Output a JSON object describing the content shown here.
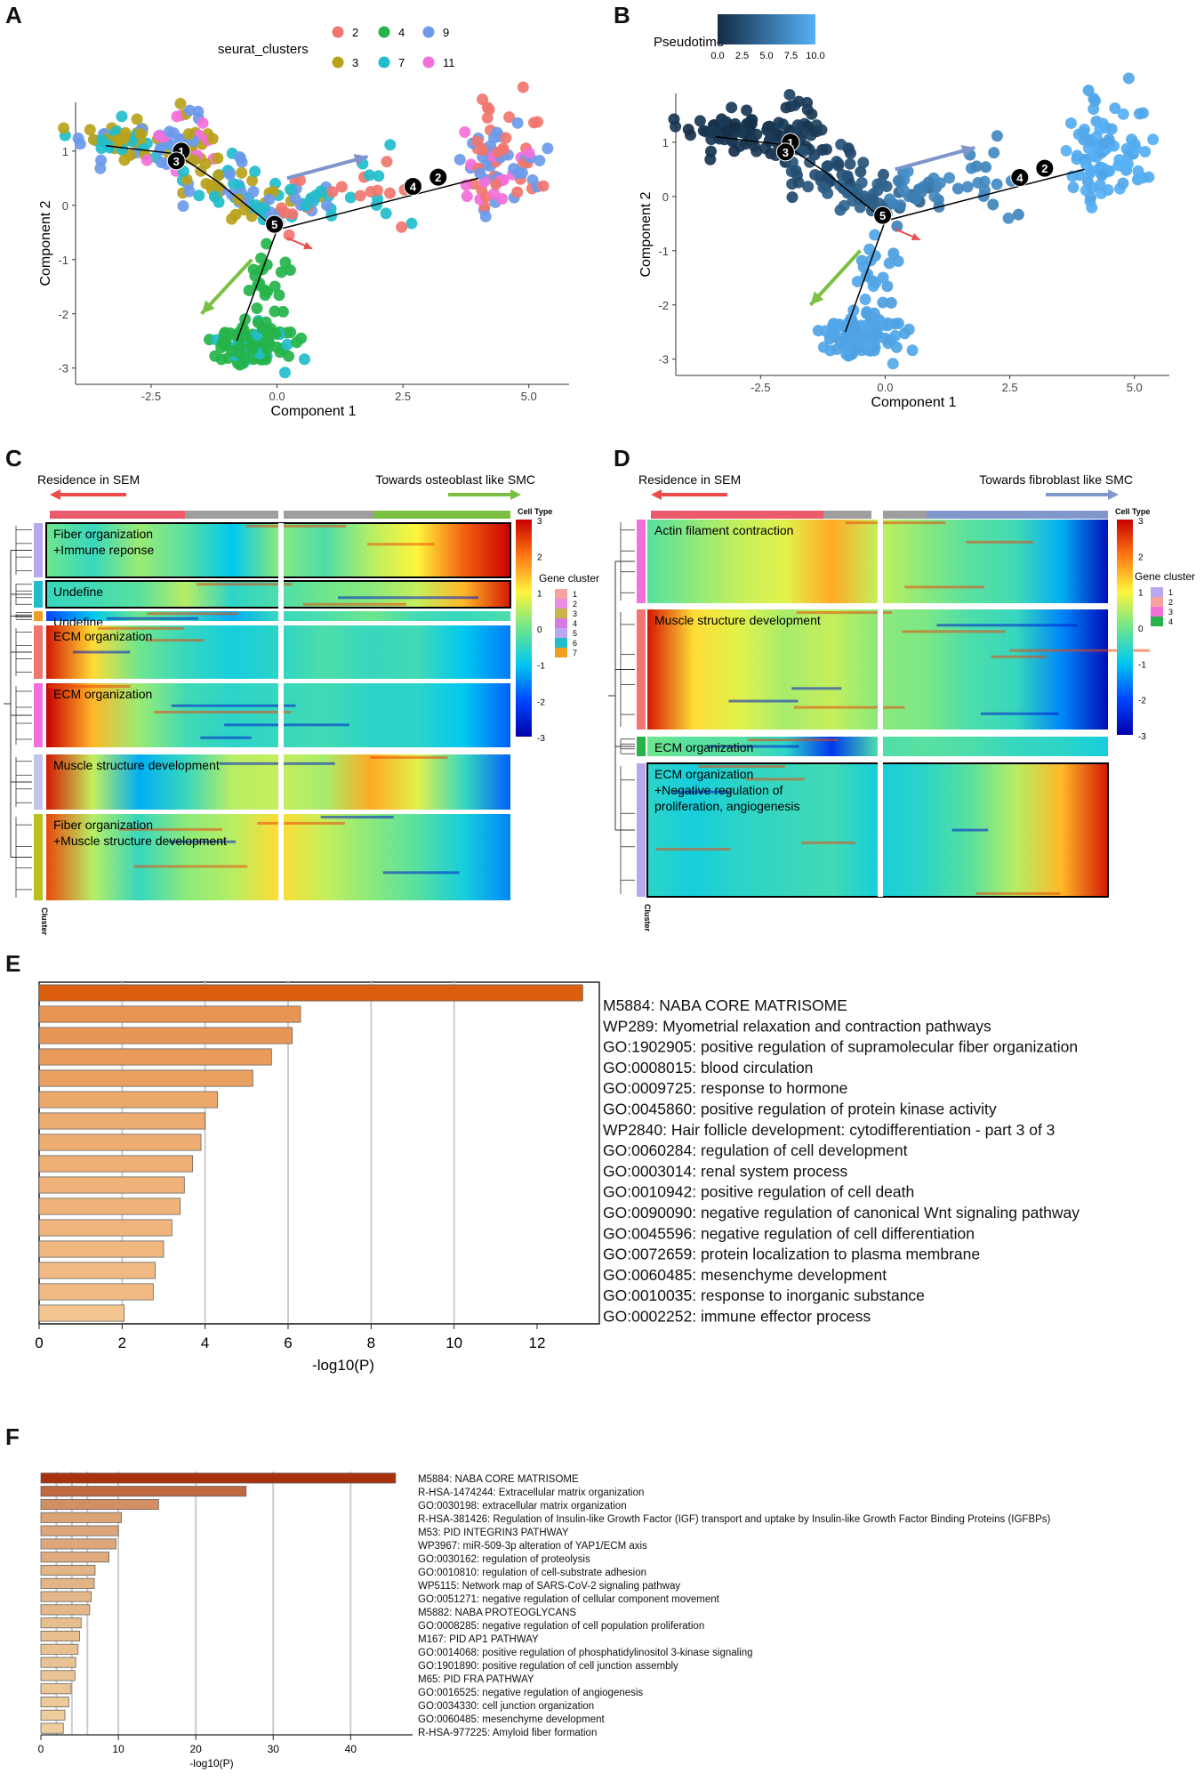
{
  "panels": {
    "a": "A",
    "b": "B",
    "c": "C",
    "d": "D",
    "e": "E",
    "f": "F"
  },
  "colors": {
    "cl2": "#F0766E",
    "cl3": "#B9A21A",
    "cl4": "#25B34A",
    "cl7": "#22BDCB",
    "cl9": "#6D9AEA",
    "cl11": "#F36FD9",
    "pt_dark": "#132B43",
    "pt_light": "#56B1F7",
    "arrow_blue": "#7E94CC",
    "arrow_green": "#7BC043",
    "arrow_red": "#EE4B4B",
    "hm_red": "#EB5A6B",
    "hm_gray": "#9E9E9E",
    "hm_blue": "#8197CB"
  },
  "chart_data": [
    {
      "id": "A",
      "type": "scatter",
      "xlabel": "Component 1",
      "ylabel": "Component 2",
      "xticks": [
        "-2.5",
        "0.0",
        "2.5",
        "5.0"
      ],
      "yticks": [
        "1",
        "0",
        "-1",
        "-2",
        "-3"
      ],
      "xlim": [
        -4.0,
        5.8
      ],
      "ylim": [
        -3.3,
        1.9
      ],
      "legend": {
        "title": "seurat_clusters",
        "items": [
          "2",
          "3",
          "4",
          "7",
          "9",
          "11"
        ]
      },
      "branch_points": [
        "1",
        "3",
        "4",
        "2",
        "5"
      ]
    },
    {
      "id": "B",
      "type": "scatter",
      "xlabel": "Component 1",
      "ylabel": "Component 2",
      "xticks": [
        "-2.5",
        "0.0",
        "2.5",
        "5.0"
      ],
      "yticks": [
        "1",
        "0",
        "-1",
        "-2",
        "-3"
      ],
      "xlim": [
        -4.2,
        5.7
      ],
      "ylim": [
        -3.3,
        1.9
      ],
      "legend": {
        "title": "Pseudotime",
        "ticks": [
          "0.0",
          "2.5",
          "5.0",
          "7.5",
          "10.0"
        ],
        "range": [
          0,
          10
        ]
      },
      "branch_points": [
        "1",
        "3",
        "4",
        "2",
        "5"
      ]
    },
    {
      "id": "C",
      "type": "heatmap",
      "left_label": "Residence in SEM",
      "right_label": "Towards osteoblast like SMC",
      "cell_type_label": "Cell Type",
      "cluster_label": "Cluster",
      "legend_title": "Gene cluster",
      "legend_items": [
        "1",
        "2",
        "3",
        "4",
        "5",
        "6",
        "7"
      ],
      "scale_ticks": [
        "3",
        "2",
        "1",
        "0",
        "-1",
        "-2",
        "-3"
      ],
      "blocks": [
        {
          "label": "Fiber organization\n+Immune reponse",
          "cluster": "5"
        },
        {
          "label": "Undefine",
          "cluster": "6"
        },
        {
          "label": "Undefine",
          "cluster": "7"
        },
        {
          "label": "ECM organization",
          "cluster": "1"
        },
        {
          "label": "ECM organization",
          "cluster": "4"
        },
        {
          "label": "Muscle structure development",
          "cluster": "2"
        },
        {
          "label": "Fiber organization\n+Muscle structure development",
          "cluster": "3"
        }
      ]
    },
    {
      "id": "D",
      "type": "heatmap",
      "left_label": "Residence in SEM",
      "right_label": "Towards fibroblast like SMC",
      "cell_type_label": "Cell Type",
      "cluster_label": "Cluster",
      "legend_title": "Gene cluster",
      "legend_items": [
        "1",
        "2",
        "3",
        "4"
      ],
      "scale_ticks": [
        "3",
        "2",
        "1",
        "0",
        "-1",
        "-2",
        "-3"
      ],
      "blocks": [
        {
          "label": "Actin filament contraction",
          "cluster": "3"
        },
        {
          "label": "Muscle structure development",
          "cluster": "2"
        },
        {
          "label": "ECM organization",
          "cluster": "4"
        },
        {
          "label": "ECM organization\n+Negative regulation of\nproliferation, angiogenesis",
          "cluster": "1"
        }
      ]
    },
    {
      "id": "E",
      "type": "bar",
      "orientation": "horizontal",
      "xlabel": "-log10(P)",
      "xticks": [
        "0",
        "2",
        "4",
        "6",
        "8",
        "10",
        "12"
      ],
      "xlim": [
        0,
        13.5
      ],
      "categories": [
        "M5884: NABA CORE MATRISOME",
        "WP289: Myometrial relaxation and contraction pathways",
        "GO:1902905: positive regulation of supramolecular fiber organization",
        "GO:0008015: blood circulation",
        "GO:0009725: response to hormone",
        "GO:0045860: positive regulation of protein kinase activity",
        "WP2840: Hair follicle development: cytodifferentiation - part 3 of 3",
        "GO:0060284: regulation of cell development",
        "GO:0003014: renal system process",
        "GO:0010942: positive regulation of cell death",
        "GO:0090090: negative regulation of canonical Wnt signaling pathway",
        "GO:0045596: negative regulation of cell differentiation",
        "GO:0072659: protein localization to plasma membrane",
        "GO:0060485: mesenchyme development",
        "GO:0010035: response to inorganic substance",
        "GO:0002252: immune effector process"
      ],
      "values": [
        13.1,
        6.3,
        6.1,
        5.6,
        5.15,
        4.3,
        4.0,
        3.9,
        3.7,
        3.5,
        3.4,
        3.2,
        3.0,
        2.8,
        2.75,
        2.05
      ]
    },
    {
      "id": "F",
      "type": "bar",
      "orientation": "horizontal",
      "xlabel": "-log10(P)",
      "xticks": [
        "0",
        "10",
        "20",
        "30",
        "40"
      ],
      "xlim": [
        0,
        48
      ],
      "categories": [
        "M5884: NABA CORE MATRISOME",
        "R-HSA-1474244: Extracellular matrix organization",
        "GO:0030198: extracellular matrix organization",
        "R-HSA-381426: Regulation of Insulin-like Growth Factor (IGF) transport and uptake by Insulin-like Growth Factor Binding Proteins (IGFBPs)",
        "M53: PID INTEGRIN3 PATHWAY",
        "WP3967: miR-509-3p alteration of YAP1/ECM axis",
        "GO:0030162: regulation of proteolysis",
        "GO:0010810: regulation of cell-substrate adhesion",
        "WP5115: Network map of SARS-CoV-2 signaling pathway",
        "GO:0051271: negative regulation of cellular component movement",
        "M5882: NABA PROTEOGLYCANS",
        "GO:0008285: negative regulation of cell population proliferation",
        "M167: PID AP1 PATHWAY",
        "GO:0014068: positive regulation of phosphatidylinositol 3-kinase signaling",
        "GO:1901890: positive regulation of cell junction assembly",
        "M65: PID FRA PATHWAY",
        "GO:0016525: negative regulation of angiogenesis",
        "GO:0034330: cell junction organization",
        "GO:0060485: mesenchyme development",
        "R-HSA-977225: Amyloid fiber formation"
      ],
      "values": [
        45.8,
        26.5,
        15.2,
        10.4,
        10.0,
        9.7,
        8.8,
        7.0,
        6.9,
        6.5,
        6.3,
        5.2,
        5.0,
        4.8,
        4.5,
        4.4,
        3.9,
        3.6,
        3.1,
        2.9
      ]
    }
  ]
}
